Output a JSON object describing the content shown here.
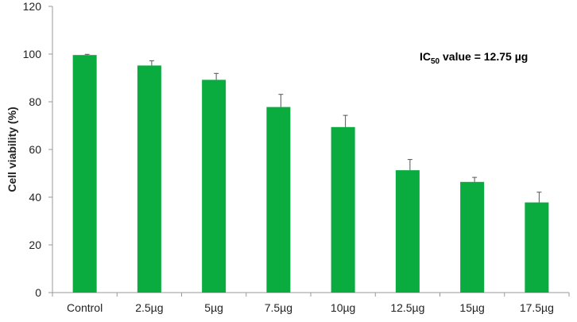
{
  "chart_data": {
    "type": "bar",
    "title": "",
    "xlabel": "",
    "ylabel": "Cell viability  (%)",
    "ylim": [
      0,
      120
    ],
    "yticks": [
      0,
      20,
      40,
      60,
      80,
      100,
      120
    ],
    "categories": [
      "Control",
      "2.5µg",
      "5µg",
      "7.5µg",
      "10µg",
      "12.5µg",
      "15µg",
      "17.5µg"
    ],
    "values": [
      99.6,
      95.2,
      89.2,
      77.8,
      69.4,
      51.3,
      46.4,
      37.8
    ],
    "errors": [
      0.3,
      2.0,
      2.7,
      5.3,
      4.9,
      4.5,
      1.9,
      4.3
    ],
    "annotation": {
      "prefix": "IC",
      "subscript": "50",
      "suffix": " value = 12.75 µg"
    },
    "bar_color": "#0aab3f",
    "error_color": "#555555",
    "axis_color": "#999999",
    "grid": false,
    "legend": "none"
  }
}
